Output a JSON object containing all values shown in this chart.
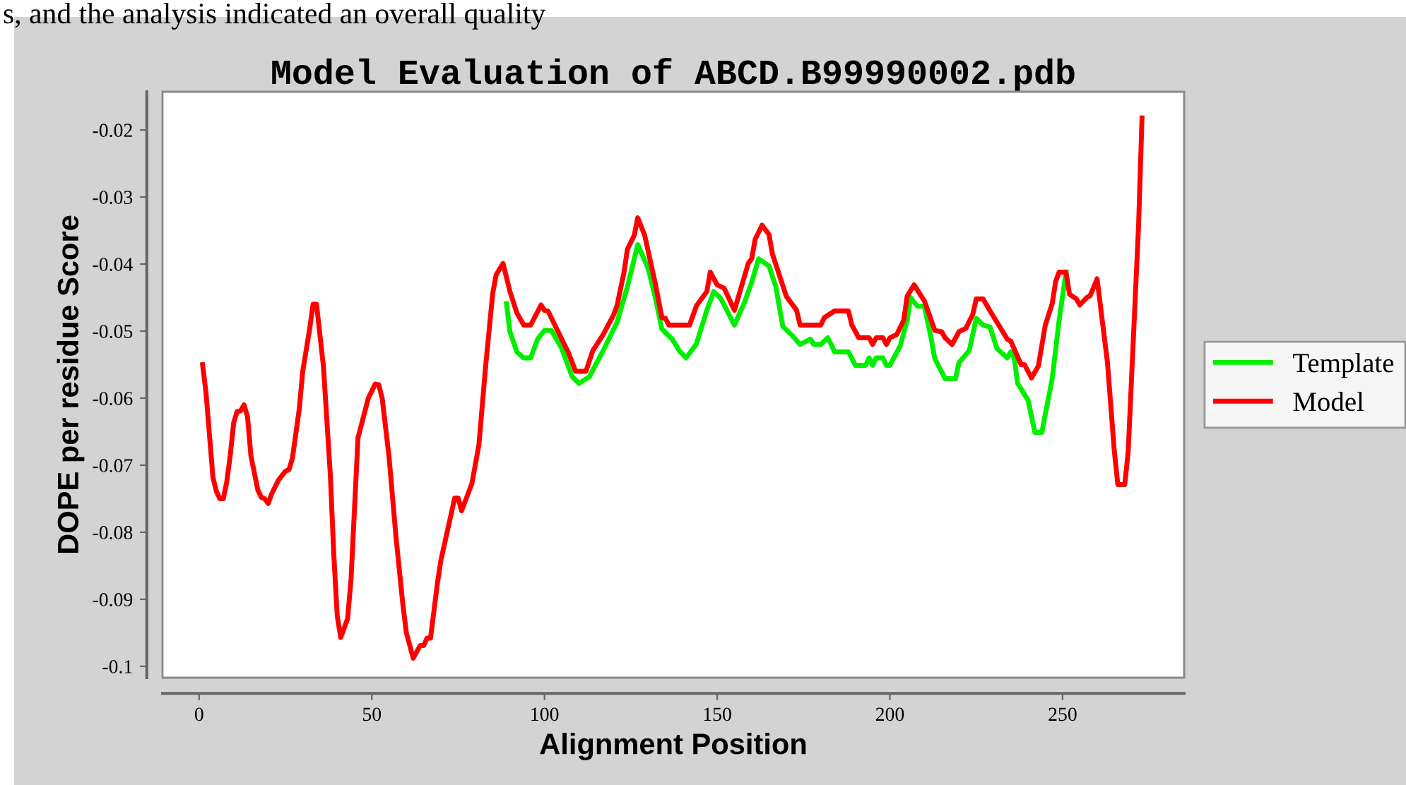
{
  "chart_data": {
    "type": "line",
    "title": "Model Evaluation of ABCD.B99990002.pdb",
    "xlabel": "Alignment Position",
    "ylabel": "DOPE per residue Score",
    "annotations": [
      "s, and the analysis indicated an overall quality"
    ],
    "xlim": [
      -10.6,
      285.2
    ],
    "xticks": [
      0,
      50,
      100,
      150,
      200,
      250
    ],
    "ylim": [
      -0.1017,
      -0.0143
    ],
    "yticks": [
      -0.1,
      -0.09,
      -0.08,
      -0.07,
      -0.06,
      -0.05,
      -0.04,
      -0.03,
      -0.02
    ],
    "grid": false,
    "legend": "right",
    "marker": "none",
    "line_style": "solid",
    "series": [
      {
        "name": "Template",
        "color": "#00ee00",
        "x": [
          89,
          90,
          92,
          94,
          96,
          98,
          100,
          102,
          105,
          108,
          110,
          113,
          117,
          121,
          124,
          127,
          130,
          132,
          134,
          137,
          139,
          141,
          144,
          147,
          149,
          151,
          155,
          158,
          160,
          162,
          165,
          167,
          169,
          172,
          174,
          177,
          178,
          180,
          182,
          183,
          184,
          188,
          190,
          193,
          194,
          195,
          196,
          198,
          199,
          200,
          203,
          205,
          206,
          208,
          210,
          212,
          213,
          216,
          219,
          220,
          223,
          224,
          225,
          227,
          229,
          231,
          234,
          235,
          236,
          237,
          240,
          242,
          244,
          247,
          249,
          251
        ],
        "values": [
          -0.0459,
          -0.0501,
          -0.0531,
          -0.054,
          -0.054,
          -0.0512,
          -0.0499,
          -0.0499,
          -0.0526,
          -0.0568,
          -0.0578,
          -0.0568,
          -0.0529,
          -0.0487,
          -0.0434,
          -0.0371,
          -0.0406,
          -0.0448,
          -0.0497,
          -0.0512,
          -0.0529,
          -0.054,
          -0.0519,
          -0.0469,
          -0.0441,
          -0.0451,
          -0.0491,
          -0.0456,
          -0.0427,
          -0.0392,
          -0.0403,
          -0.0434,
          -0.0493,
          -0.0508,
          -0.052,
          -0.0512,
          -0.052,
          -0.052,
          -0.051,
          -0.052,
          -0.0531,
          -0.0531,
          -0.0551,
          -0.0551,
          -0.054,
          -0.0551,
          -0.054,
          -0.054,
          -0.0551,
          -0.0551,
          -0.0522,
          -0.0484,
          -0.045,
          -0.0463,
          -0.0463,
          -0.0512,
          -0.0541,
          -0.0571,
          -0.0571,
          -0.0547,
          -0.0529,
          -0.0505,
          -0.0481,
          -0.0491,
          -0.0494,
          -0.0526,
          -0.054,
          -0.0531,
          -0.054,
          -0.0578,
          -0.0603,
          -0.0651,
          -0.0651,
          -0.0571,
          -0.0484,
          -0.0412
        ]
      },
      {
        "name": "Model",
        "color": "#ff0000",
        "x": [
          1,
          2,
          4,
          5,
          6,
          7,
          8,
          9,
          10,
          11,
          12,
          13,
          14,
          15,
          17,
          18,
          19,
          20,
          21,
          23,
          25,
          26,
          27,
          29,
          30,
          32,
          33,
          34,
          36,
          38,
          39,
          40,
          41,
          43,
          44,
          45,
          46,
          49,
          51,
          52,
          53,
          55,
          57,
          59,
          60,
          62,
          64,
          65,
          66,
          67,
          69,
          70,
          74,
          75,
          76,
          79,
          81,
          83,
          85,
          86,
          88,
          90,
          92,
          94,
          96,
          99,
          100,
          101,
          105,
          107,
          109,
          112,
          114,
          117,
          120,
          121,
          123,
          124,
          126,
          127,
          129,
          132,
          134,
          135,
          136,
          142,
          144,
          147,
          148,
          150,
          152,
          155,
          159,
          160,
          161,
          163,
          165,
          166,
          170,
          173,
          174,
          180,
          181,
          184,
          188,
          189,
          191,
          194,
          195,
          196,
          198,
          199,
          200,
          202,
          204,
          205,
          207,
          210,
          212,
          213,
          215,
          216,
          218,
          220,
          222,
          224,
          225,
          227,
          228,
          229,
          234,
          235,
          238,
          239,
          241,
          243,
          245,
          247,
          248,
          249,
          251,
          252,
          254,
          255,
          257,
          258,
          260,
          263,
          265,
          266,
          268,
          269,
          270,
          272,
          273
        ],
        "values": [
          -0.055,
          -0.0592,
          -0.0718,
          -0.0739,
          -0.075,
          -0.075,
          -0.0725,
          -0.0686,
          -0.0637,
          -0.062,
          -0.0619,
          -0.061,
          -0.0627,
          -0.0686,
          -0.0737,
          -0.0748,
          -0.075,
          -0.0757,
          -0.0743,
          -0.0722,
          -0.0709,
          -0.0707,
          -0.069,
          -0.0616,
          -0.056,
          -0.0497,
          -0.046,
          -0.046,
          -0.0553,
          -0.0715,
          -0.0834,
          -0.0925,
          -0.0957,
          -0.0929,
          -0.0869,
          -0.0764,
          -0.0659,
          -0.06,
          -0.0579,
          -0.058,
          -0.06,
          -0.0688,
          -0.0807,
          -0.0908,
          -0.095,
          -0.0988,
          -0.0969,
          -0.0969,
          -0.0958,
          -0.0958,
          -0.0876,
          -0.0842,
          -0.0749,
          -0.0749,
          -0.0768,
          -0.0727,
          -0.067,
          -0.055,
          -0.0444,
          -0.0416,
          -0.0399,
          -0.0441,
          -0.0473,
          -0.0491,
          -0.0491,
          -0.0461,
          -0.0469,
          -0.047,
          -0.0512,
          -0.0533,
          -0.056,
          -0.056,
          -0.0529,
          -0.0505,
          -0.0476,
          -0.0462,
          -0.0413,
          -0.0378,
          -0.0357,
          -0.0331,
          -0.0357,
          -0.0427,
          -0.048,
          -0.0481,
          -0.0491,
          -0.0491,
          -0.0462,
          -0.0441,
          -0.0412,
          -0.0431,
          -0.0436,
          -0.0469,
          -0.0399,
          -0.0392,
          -0.0363,
          -0.0342,
          -0.0356,
          -0.0385,
          -0.0448,
          -0.0469,
          -0.0491,
          -0.0491,
          -0.048,
          -0.047,
          -0.047,
          -0.0491,
          -0.051,
          -0.051,
          -0.052,
          -0.051,
          -0.051,
          -0.052,
          -0.051,
          -0.0505,
          -0.0484,
          -0.0448,
          -0.0431,
          -0.0455,
          -0.0484,
          -0.0499,
          -0.0501,
          -0.051,
          -0.052,
          -0.0501,
          -0.0496,
          -0.0475,
          -0.0452,
          -0.0452,
          -0.0461,
          -0.047,
          -0.0512,
          -0.0515,
          -0.055,
          -0.055,
          -0.057,
          -0.0552,
          -0.0491,
          -0.0459,
          -0.0426,
          -0.0412,
          -0.0412,
          -0.0445,
          -0.0452,
          -0.0461,
          -0.045,
          -0.0447,
          -0.0422,
          -0.0547,
          -0.068,
          -0.0729,
          -0.0729,
          -0.068,
          -0.0567,
          -0.0343,
          -0.0182
        ]
      }
    ]
  }
}
